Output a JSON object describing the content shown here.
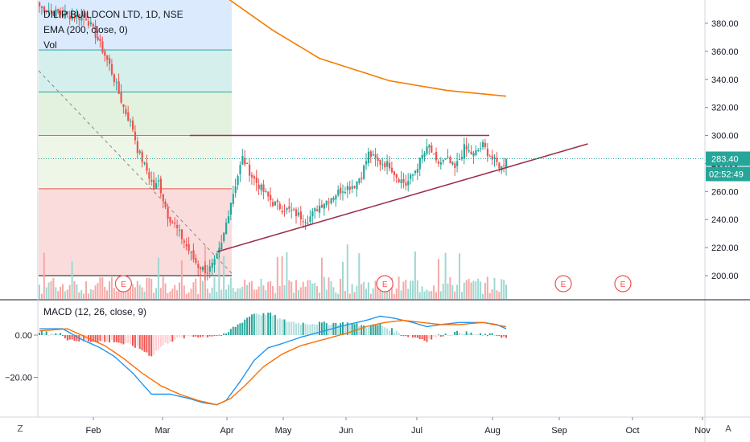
{
  "legend": {
    "symbol": "DILIP BUILDCON LTD, 1D, NSE",
    "ema": "EMA (200, close, 0)",
    "vol": "Vol"
  },
  "macd_legend": "MACD (12, 26, close, 9)",
  "price_tag": "283.40",
  "countdown_tag": "02:52:49",
  "earnings_label": "E",
  "buttons": {
    "left": "Z",
    "right": "A"
  },
  "colors": {
    "up": "#26a69a",
    "down": "#ef5350",
    "ema": "#f57c00",
    "macd": "#2196f3",
    "signal": "#ff6d00",
    "trendline": "#9c2f4a",
    "price_line": "#26a69a"
  },
  "chart_data": [
    {
      "type": "candlestick",
      "title": "DILIP BUILDCON LTD, 1D, NSE",
      "y_ticks": [
        200,
        220,
        240,
        260,
        280,
        300,
        320,
        340,
        360,
        380
      ],
      "y_tick_labels": [
        "200.00",
        "220.00",
        "240.00",
        "260.00",
        "280.00",
        "300.00",
        "320.00",
        "340.00",
        "360.00",
        "380.00"
      ],
      "ylim": [
        190,
        392
      ],
      "x_tick_labels": [
        "Feb",
        "Mar",
        "Apr",
        "May",
        "Jun",
        "Jul",
        "Aug",
        "Sep",
        "Oct",
        "Nov"
      ],
      "last_price": 283.4,
      "close_anchors": [
        [
          0,
          392
        ],
        [
          10,
          386
        ],
        [
          20,
          384
        ],
        [
          24,
          372
        ],
        [
          30,
          350
        ],
        [
          36,
          320
        ],
        [
          40,
          305
        ],
        [
          42,
          290
        ],
        [
          46,
          275
        ],
        [
          49,
          262
        ],
        [
          51,
          267
        ],
        [
          55,
          243
        ],
        [
          58,
          236
        ],
        [
          62,
          224
        ],
        [
          66,
          212
        ],
        [
          68,
          207
        ],
        [
          72,
          203
        ],
        [
          75,
          209
        ],
        [
          78,
          222
        ],
        [
          82,
          253
        ],
        [
          87,
          284
        ],
        [
          91,
          271
        ],
        [
          95,
          262
        ],
        [
          100,
          252
        ],
        [
          104,
          248
        ],
        [
          108,
          246
        ],
        [
          112,
          242
        ],
        [
          115,
          240
        ],
        [
          120,
          250
        ],
        [
          125,
          256
        ],
        [
          130,
          262
        ],
        [
          135,
          265
        ],
        [
          138,
          272
        ],
        [
          141,
          287
        ],
        [
          145,
          281
        ],
        [
          150,
          279
        ],
        [
          153,
          271
        ],
        [
          157,
          265
        ],
        [
          160,
          272
        ],
        [
          164,
          285
        ],
        [
          167,
          292
        ],
        [
          170,
          280
        ],
        [
          175,
          282
        ],
        [
          178,
          276
        ],
        [
          182,
          291
        ],
        [
          186,
          286
        ],
        [
          190,
          293
        ],
        [
          194,
          283
        ],
        [
          198,
          277
        ],
        [
          200,
          284
        ]
      ],
      "horizontal_levels": [
        {
          "name": "resistance",
          "value": 300
        }
      ],
      "trendline": {
        "from": [
          76,
          217
        ],
        "to": [
          235,
          294
        ]
      },
      "ema200": [
        [
          77,
          402
        ],
        [
          100,
          375
        ],
        [
          120,
          355
        ],
        [
          150,
          339
        ],
        [
          175,
          332
        ],
        [
          200,
          328
        ]
      ],
      "fib_levels": [
        361,
        331,
        300,
        262,
        200
      ],
      "earnings_markers": [
        36,
        148,
        250
      ]
    },
    {
      "type": "bar",
      "title": "Vol",
      "values_note_free": true,
      "ylim": [
        0,
        1
      ]
    },
    {
      "type": "line",
      "title": "MACD (12, 26, close, 9)",
      "y_ticks": [
        0,
        -20
      ],
      "y_tick_labels": [
        "0.00",
        "−20.00"
      ],
      "ylim": [
        -40,
        12
      ],
      "series": [
        {
          "name": "MACD",
          "color": "#2196f3",
          "points": [
            [
              0,
              3
            ],
            [
              10,
              3
            ],
            [
              18,
              -2
            ],
            [
              26,
              -6
            ],
            [
              32,
              -10
            ],
            [
              40,
              -18
            ],
            [
              48,
              -28
            ],
            [
              56,
              -28
            ],
            [
              64,
              -30
            ],
            [
              70,
              -32
            ],
            [
              76,
              -33
            ],
            [
              80,
              -31
            ],
            [
              86,
              -22
            ],
            [
              92,
              -12
            ],
            [
              98,
              -6
            ],
            [
              104,
              -4
            ],
            [
              112,
              -1
            ],
            [
              122,
              2
            ],
            [
              132,
              5
            ],
            [
              140,
              7
            ],
            [
              146,
              9
            ],
            [
              152,
              8
            ],
            [
              160,
              6
            ],
            [
              166,
              4
            ],
            [
              172,
              5
            ],
            [
              180,
              6
            ],
            [
              190,
              6
            ],
            [
              196,
              5
            ],
            [
              200,
              3
            ]
          ]
        },
        {
          "name": "Signal",
          "color": "#ff6d00",
          "points": [
            [
              0,
              2
            ],
            [
              12,
              3
            ],
            [
              20,
              -1
            ],
            [
              28,
              -5
            ],
            [
              36,
              -11
            ],
            [
              44,
              -18
            ],
            [
              52,
              -24
            ],
            [
              60,
              -28
            ],
            [
              68,
              -31
            ],
            [
              76,
              -33
            ],
            [
              82,
              -30
            ],
            [
              88,
              -24
            ],
            [
              96,
              -15
            ],
            [
              104,
              -9
            ],
            [
              112,
              -5
            ],
            [
              122,
              -2
            ],
            [
              132,
              1
            ],
            [
              140,
              4
            ],
            [
              148,
              6
            ],
            [
              156,
              7
            ],
            [
              164,
              6
            ],
            [
              172,
              5
            ],
            [
              180,
              5
            ],
            [
              190,
              6
            ],
            [
              200,
              4
            ]
          ]
        }
      ]
    }
  ]
}
